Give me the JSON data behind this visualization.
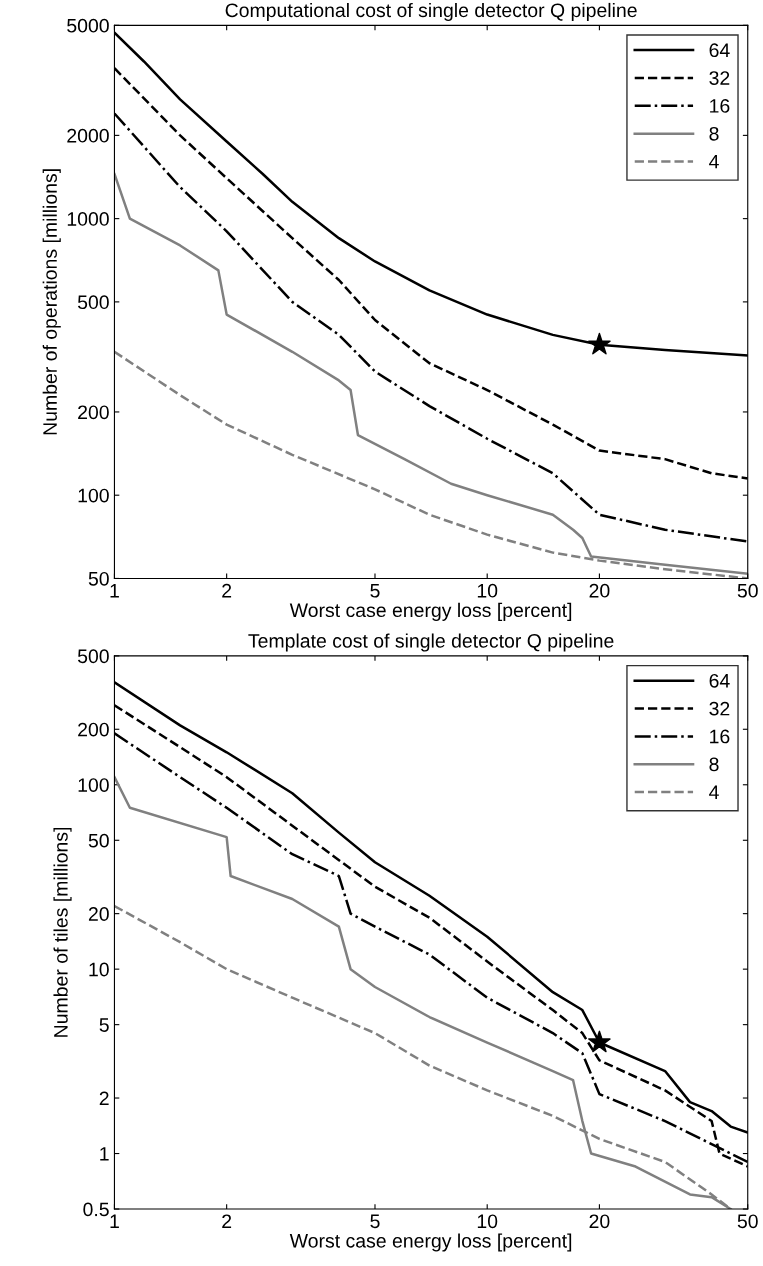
{
  "chart_data": [
    {
      "type": "line",
      "title": "Computational cost of single detector Q pipeline",
      "xlabel": "Worst case energy loss [percent]",
      "ylabel": "Number of operations [millions]",
      "log": "xy",
      "xlim": [
        1,
        50
      ],
      "ylim": [
        50,
        5000
      ],
      "xticks": [
        1,
        2,
        5,
        10,
        20,
        50
      ],
      "yticks": [
        50,
        100,
        200,
        500,
        1000,
        2000,
        5000
      ],
      "grid": false,
      "legend": "top right",
      "series": [
        {
          "name": "64",
          "color": "#000000",
          "line_style": "solid",
          "x": [
            1,
            1.2,
            1.5,
            2,
            2.5,
            3,
            4,
            5,
            7,
            10,
            15,
            20,
            30,
            50
          ],
          "values": [
            4700,
            3700,
            2700,
            1900,
            1450,
            1150,
            850,
            700,
            550,
            450,
            380,
            350,
            335,
            320
          ]
        },
        {
          "name": "32",
          "color": "#000000",
          "line_style": "dashed",
          "x": [
            1,
            1.5,
            2,
            3,
            4,
            5,
            7,
            10,
            15,
            20,
            30,
            40,
            50
          ],
          "values": [
            3500,
            2000,
            1400,
            850,
            600,
            430,
            300,
            240,
            180,
            145,
            135,
            120,
            115
          ]
        },
        {
          "name": "16",
          "color": "#000000",
          "line_style": "dashdot",
          "x": [
            1,
            1.5,
            2,
            3,
            4,
            5,
            7,
            10,
            15,
            20,
            30,
            50
          ],
          "values": [
            2400,
            1300,
            900,
            500,
            380,
            280,
            210,
            160,
            120,
            85,
            75,
            68
          ]
        },
        {
          "name": "8",
          "color": "#808080",
          "line_style": "solid",
          "x": [
            1,
            1.1,
            1.5,
            1.9,
            2,
            3,
            4,
            4.3,
            4.5,
            6,
            8,
            10,
            15,
            17,
            18,
            19,
            30,
            50
          ],
          "values": [
            1450,
            1000,
            800,
            650,
            450,
            330,
            260,
            240,
            165,
            135,
            110,
            100,
            85,
            75,
            70,
            60,
            56,
            52
          ]
        },
        {
          "name": "4",
          "color": "#808080",
          "line_style": "dashed",
          "x": [
            1,
            1.5,
            2,
            3,
            5,
            7,
            10,
            15,
            20,
            30,
            50
          ],
          "values": [
            330,
            230,
            180,
            140,
            105,
            85,
            72,
            62,
            58,
            54,
            50
          ]
        },
        {
          "type": "scatter",
          "marker": "star",
          "color": "#000000",
          "x": [
            20
          ],
          "values": [
            350
          ]
        }
      ]
    },
    {
      "type": "line",
      "title": "Template cost of single detector Q pipeline",
      "xlabel": "Worst case energy loss [percent]",
      "ylabel": "Number of tiles [millions]",
      "log": "xy",
      "xlim": [
        1,
        50
      ],
      "ylim": [
        0.5,
        500
      ],
      "xticks": [
        1,
        2,
        5,
        10,
        20,
        50
      ],
      "yticks": [
        0.5,
        1,
        2,
        5,
        10,
        20,
        50,
        100,
        200,
        500
      ],
      "grid": false,
      "legend": "top right",
      "series": [
        {
          "name": "64",
          "color": "#000000",
          "line_style": "solid",
          "x": [
            1,
            1.5,
            2,
            3,
            4,
            5,
            7,
            10,
            15,
            18,
            20,
            30,
            35,
            40,
            45,
            50
          ],
          "values": [
            360,
            210,
            150,
            90,
            55,
            38,
            25,
            15,
            7.5,
            6,
            4,
            2.8,
            1.9,
            1.7,
            1.4,
            1.3
          ]
        },
        {
          "name": "32",
          "color": "#000000",
          "line_style": "dashed",
          "x": [
            1,
            1.5,
            2,
            3,
            5,
            7,
            10,
            15,
            18,
            20,
            30,
            40,
            42,
            50
          ],
          "values": [
            270,
            160,
            110,
            60,
            28,
            19,
            11,
            6,
            4.5,
            3.2,
            2.2,
            1.5,
            1.0,
            0.85
          ]
        },
        {
          "name": "16",
          "color": "#000000",
          "line_style": "dashdot",
          "x": [
            1,
            1.5,
            2,
            3,
            4,
            4.3,
            5,
            7,
            10,
            15,
            18,
            20,
            30,
            50
          ],
          "values": [
            190,
            110,
            75,
            42,
            32,
            20,
            17,
            12,
            7,
            4.5,
            3.5,
            2.1,
            1.5,
            0.9
          ]
        },
        {
          "name": "8",
          "color": "#808080",
          "line_style": "solid",
          "x": [
            1,
            1.1,
            2,
            2.05,
            3,
            4,
            4.3,
            5,
            7,
            10,
            15,
            17,
            18,
            19,
            25,
            35,
            40,
            45
          ],
          "values": [
            110,
            75,
            52,
            32,
            24,
            17,
            10,
            8,
            5.5,
            4,
            2.8,
            2.5,
            1.5,
            1.0,
            0.85,
            0.6,
            0.58,
            0.5
          ]
        },
        {
          "name": "4",
          "color": "#808080",
          "line_style": "dashed",
          "x": [
            1,
            1.5,
            2,
            3,
            5,
            7,
            10,
            15,
            20,
            30,
            40,
            45
          ],
          "values": [
            22,
            14,
            10,
            7,
            4.5,
            3,
            2.2,
            1.6,
            1.2,
            0.9,
            0.6,
            0.5
          ]
        },
        {
          "type": "scatter",
          "marker": "star",
          "color": "#000000",
          "x": [
            20
          ],
          "values": [
            4
          ]
        }
      ]
    }
  ]
}
